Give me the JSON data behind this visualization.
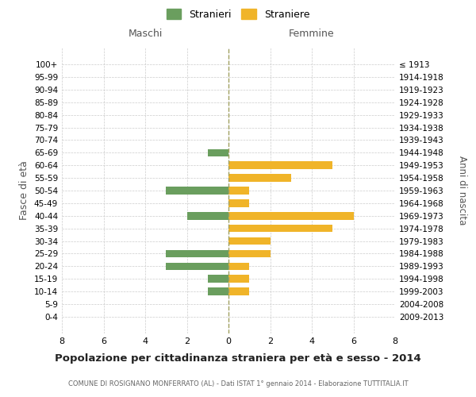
{
  "age_groups": [
    "100+",
    "95-99",
    "90-94",
    "85-89",
    "80-84",
    "75-79",
    "70-74",
    "65-69",
    "60-64",
    "55-59",
    "50-54",
    "45-49",
    "40-44",
    "35-39",
    "30-34",
    "25-29",
    "20-24",
    "15-19",
    "10-14",
    "5-9",
    "0-4"
  ],
  "birth_years": [
    "≤ 1913",
    "1914-1918",
    "1919-1923",
    "1924-1928",
    "1929-1933",
    "1934-1938",
    "1939-1943",
    "1944-1948",
    "1949-1953",
    "1954-1958",
    "1959-1963",
    "1964-1968",
    "1969-1973",
    "1974-1978",
    "1979-1983",
    "1984-1988",
    "1989-1993",
    "1994-1998",
    "1999-2003",
    "2004-2008",
    "2009-2013"
  ],
  "maschi": [
    0,
    0,
    0,
    0,
    0,
    0,
    0,
    1,
    0,
    0,
    3,
    0,
    2,
    0,
    0,
    3,
    3,
    1,
    1,
    0,
    0
  ],
  "femmine": [
    0,
    0,
    0,
    0,
    0,
    0,
    0,
    0,
    5,
    3,
    1,
    1,
    6,
    5,
    2,
    2,
    1,
    1,
    1,
    0,
    0
  ],
  "color_maschi": "#6a9e5e",
  "color_femmine": "#f0b429",
  "title": "Popolazione per cittadinanza straniera per età e sesso - 2014",
  "subtitle": "COMUNE DI ROSIGNANO MONFERRATO (AL) - Dati ISTAT 1° gennaio 2014 - Elaborazione TUTTITALIA.IT",
  "ylabel_left": "Fasce di età",
  "ylabel_right": "Anni di nascita",
  "xlabel_maschi": "Maschi",
  "xlabel_femmine": "Femmine",
  "legend_maschi": "Stranieri",
  "legend_femmine": "Straniere",
  "xlim": 8,
  "background_color": "#ffffff",
  "grid_color": "#cccccc",
  "center_line_color": "#a0a060"
}
